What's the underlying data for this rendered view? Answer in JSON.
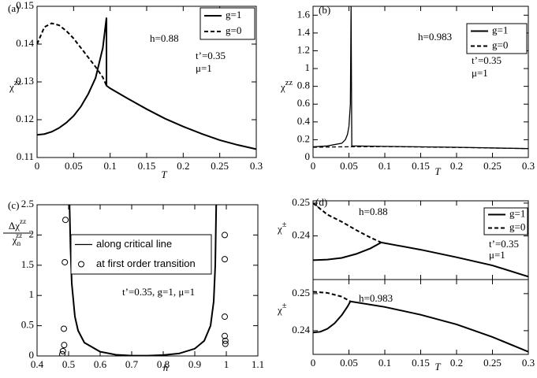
{
  "chart_data": [
    {
      "type": "line",
      "label": "(a)",
      "xlabel": "T",
      "ylabel": [
        {
          "text": "χ"
        },
        {
          "text": "zz",
          "shift": "sup"
        }
      ],
      "xlim": [
        0,
        0.3
      ],
      "xticks": [
        0,
        0.05,
        0.1,
        0.15,
        0.2,
        0.25,
        0.3
      ],
      "ylim": [
        0.11,
        0.15
      ],
      "yticks": [
        0.11,
        0.12,
        0.13,
        0.14,
        0.15
      ],
      "legend": "upper right",
      "annotations": [
        "h=0.88",
        "t’=0.35",
        "μ=1"
      ],
      "series": [
        {
          "name": "g=1",
          "color": "#000000",
          "dash": false,
          "x": [
            0,
            0.01,
            0.02,
            0.03,
            0.04,
            0.05,
            0.06,
            0.07,
            0.08,
            0.09,
            0.095,
            0.095,
            0.1,
            0.125,
            0.15,
            0.175,
            0.2,
            0.225,
            0.25,
            0.275,
            0.3
          ],
          "values": [
            0.116,
            0.1162,
            0.1168,
            0.1178,
            0.1192,
            0.121,
            0.1235,
            0.1268,
            0.131,
            0.139,
            0.147,
            0.129,
            0.1283,
            0.1255,
            0.1228,
            0.1203,
            0.1182,
            0.1163,
            0.1146,
            0.1133,
            0.1122
          ]
        },
        {
          "name": "g=0",
          "color": "#000000",
          "dash": true,
          "x": [
            0,
            0.01,
            0.02,
            0.03,
            0.04,
            0.05,
            0.06,
            0.07,
            0.08,
            0.09,
            0.095
          ],
          "values": [
            0.14,
            0.1445,
            0.1455,
            0.145,
            0.1435,
            0.1415,
            0.139,
            0.1365,
            0.134,
            0.1312,
            0.129
          ]
        }
      ]
    },
    {
      "type": "line",
      "label": "(b)",
      "xlabel": "T",
      "ylabel": [
        {
          "text": "χ"
        },
        {
          "text": "zz",
          "shift": "sup"
        }
      ],
      "xlim": [
        0,
        0.3
      ],
      "xticks": [
        0,
        0.05,
        0.1,
        0.15,
        0.2,
        0.25,
        0.3
      ],
      "ylim": [
        0,
        1.7
      ],
      "yticks": [
        0,
        0.2,
        0.4,
        0.6,
        0.8,
        1,
        1.2,
        1.4,
        1.6
      ],
      "legend": "upper right",
      "annotations": [
        "h=0.983",
        "t’=0.35",
        "μ=1"
      ],
      "series": [
        {
          "name": "g=1",
          "color": "#000000",
          "dash": false,
          "x": [
            0,
            0.02,
            0.04,
            0.045,
            0.048,
            0.05,
            0.052,
            0.053,
            0.054,
            0.1,
            0.2,
            0.3
          ],
          "values": [
            0.12,
            0.13,
            0.16,
            0.2,
            0.26,
            0.35,
            0.6,
            1.7,
            0.13,
            0.125,
            0.115,
            0.1
          ]
        },
        {
          "name": "g=0",
          "color": "#000000",
          "dash": true,
          "x": [
            0,
            0.04,
            0.1,
            0.2,
            0.3
          ],
          "values": [
            0.115,
            0.12,
            0.123,
            0.113,
            0.1
          ]
        }
      ]
    },
    {
      "type": "line",
      "label": "(c)",
      "xlabel": "h",
      "ylabel": {
        "num": [
          {
            "text": "Δχ"
          },
          {
            "text": "zz",
            "shift": "sup"
          }
        ],
        "den": [
          {
            "text": "χ"
          },
          {
            "text": "n",
            "shift": "sub"
          },
          {
            "text": "zz",
            "shift": "sup"
          }
        ]
      },
      "xlim": [
        0.4,
        1.1
      ],
      "xticks": [
        0.4,
        0.5,
        0.6,
        0.7,
        0.8,
        0.9,
        1,
        1.1
      ],
      "ylim": [
        0,
        2.5
      ],
      "yticks": [
        0,
        0.5,
        1,
        1.5,
        2,
        2.5
      ],
      "legend": "upper center",
      "annotations": [
        "t’=0.35, g=1, μ=1"
      ],
      "series": [
        {
          "name": "along critical line",
          "color": "#000000",
          "dash": false,
          "x": [
            0.503,
            0.506,
            0.51,
            0.52,
            0.53,
            0.55,
            0.6,
            0.65,
            0.7,
            0.75,
            0.8,
            0.85,
            0.9,
            0.93,
            0.95,
            0.96,
            0.965,
            0.968
          ],
          "values": [
            2.5,
            1.8,
            1.2,
            0.65,
            0.42,
            0.22,
            0.07,
            0.02,
            0.005,
            0.005,
            0.015,
            0.04,
            0.12,
            0.25,
            0.5,
            0.9,
            1.5,
            2.5
          ]
        },
        {
          "name": "at first order transition",
          "color": "#000000",
          "marker": "circle-open",
          "x": [
            0.49,
            0.488,
            0.485,
            0.486,
            0.482,
            0.48,
            0.995,
            0.995,
            0.995,
            0.995,
            0.997,
            0.997
          ],
          "values": [
            2.25,
            1.55,
            0.45,
            0.18,
            0.08,
            0.03,
            2.0,
            1.6,
            0.65,
            0.33,
            0.25,
            0.2
          ]
        }
      ]
    },
    {
      "type": "line",
      "label": "(d)",
      "ylabel": [
        {
          "text": "χ"
        },
        {
          "text": "±",
          "shift": "sup"
        }
      ],
      "xlim": [
        0,
        0.3
      ],
      "xticks": [
        0,
        0.05,
        0.1,
        0.15,
        0.2,
        0.25,
        0.3
      ],
      "xticklabels": false,
      "ylim": [
        0.2267,
        0.2507
      ],
      "yticks": [
        0.24,
        0.25
      ],
      "legend": "upper right",
      "annotations": [
        "h=0.88",
        "t’=0.35",
        "μ=1"
      ],
      "series": [
        {
          "name": "g=1",
          "color": "#000000",
          "dash": false,
          "x": [
            0,
            0.02,
            0.04,
            0.06,
            0.08,
            0.095,
            0.15,
            0.2,
            0.25,
            0.3
          ],
          "values": [
            0.2326,
            0.2328,
            0.2333,
            0.2345,
            0.2362,
            0.238,
            0.2358,
            0.2335,
            0.231,
            0.2276
          ]
        },
        {
          "name": "g=0",
          "color": "#000000",
          "dash": true,
          "x": [
            0,
            0.02,
            0.04,
            0.06,
            0.08,
            0.095
          ],
          "values": [
            0.25,
            0.2465,
            0.2443,
            0.2418,
            0.2395,
            0.238
          ]
        }
      ]
    },
    {
      "type": "line",
      "xlabel": "T",
      "ylabel": [
        {
          "text": "χ"
        },
        {
          "text": "±",
          "shift": "sup"
        }
      ],
      "xlim": [
        0,
        0.3
      ],
      "xticks": [
        0,
        0.05,
        0.1,
        0.15,
        0.2,
        0.25,
        0.3
      ],
      "ylim": [
        0.2336,
        0.2538
      ],
      "yticks": [
        0.24,
        0.25
      ],
      "annotations": [
        "h=0.983"
      ],
      "series": [
        {
          "name": "g=1",
          "color": "#000000",
          "dash": false,
          "x": [
            0,
            0.01,
            0.02,
            0.03,
            0.04,
            0.048,
            0.052,
            0.1,
            0.15,
            0.2,
            0.25,
            0.3
          ],
          "values": [
            0.2395,
            0.2397,
            0.2405,
            0.242,
            0.2442,
            0.2465,
            0.2479,
            0.2464,
            0.2443,
            0.2417,
            0.2383,
            0.2343
          ]
        },
        {
          "name": "g=0",
          "color": "#000000",
          "dash": true,
          "x": [
            0,
            0.02,
            0.04,
            0.052
          ],
          "values": [
            0.2505,
            0.2502,
            0.2492,
            0.2479
          ]
        }
      ]
    }
  ]
}
